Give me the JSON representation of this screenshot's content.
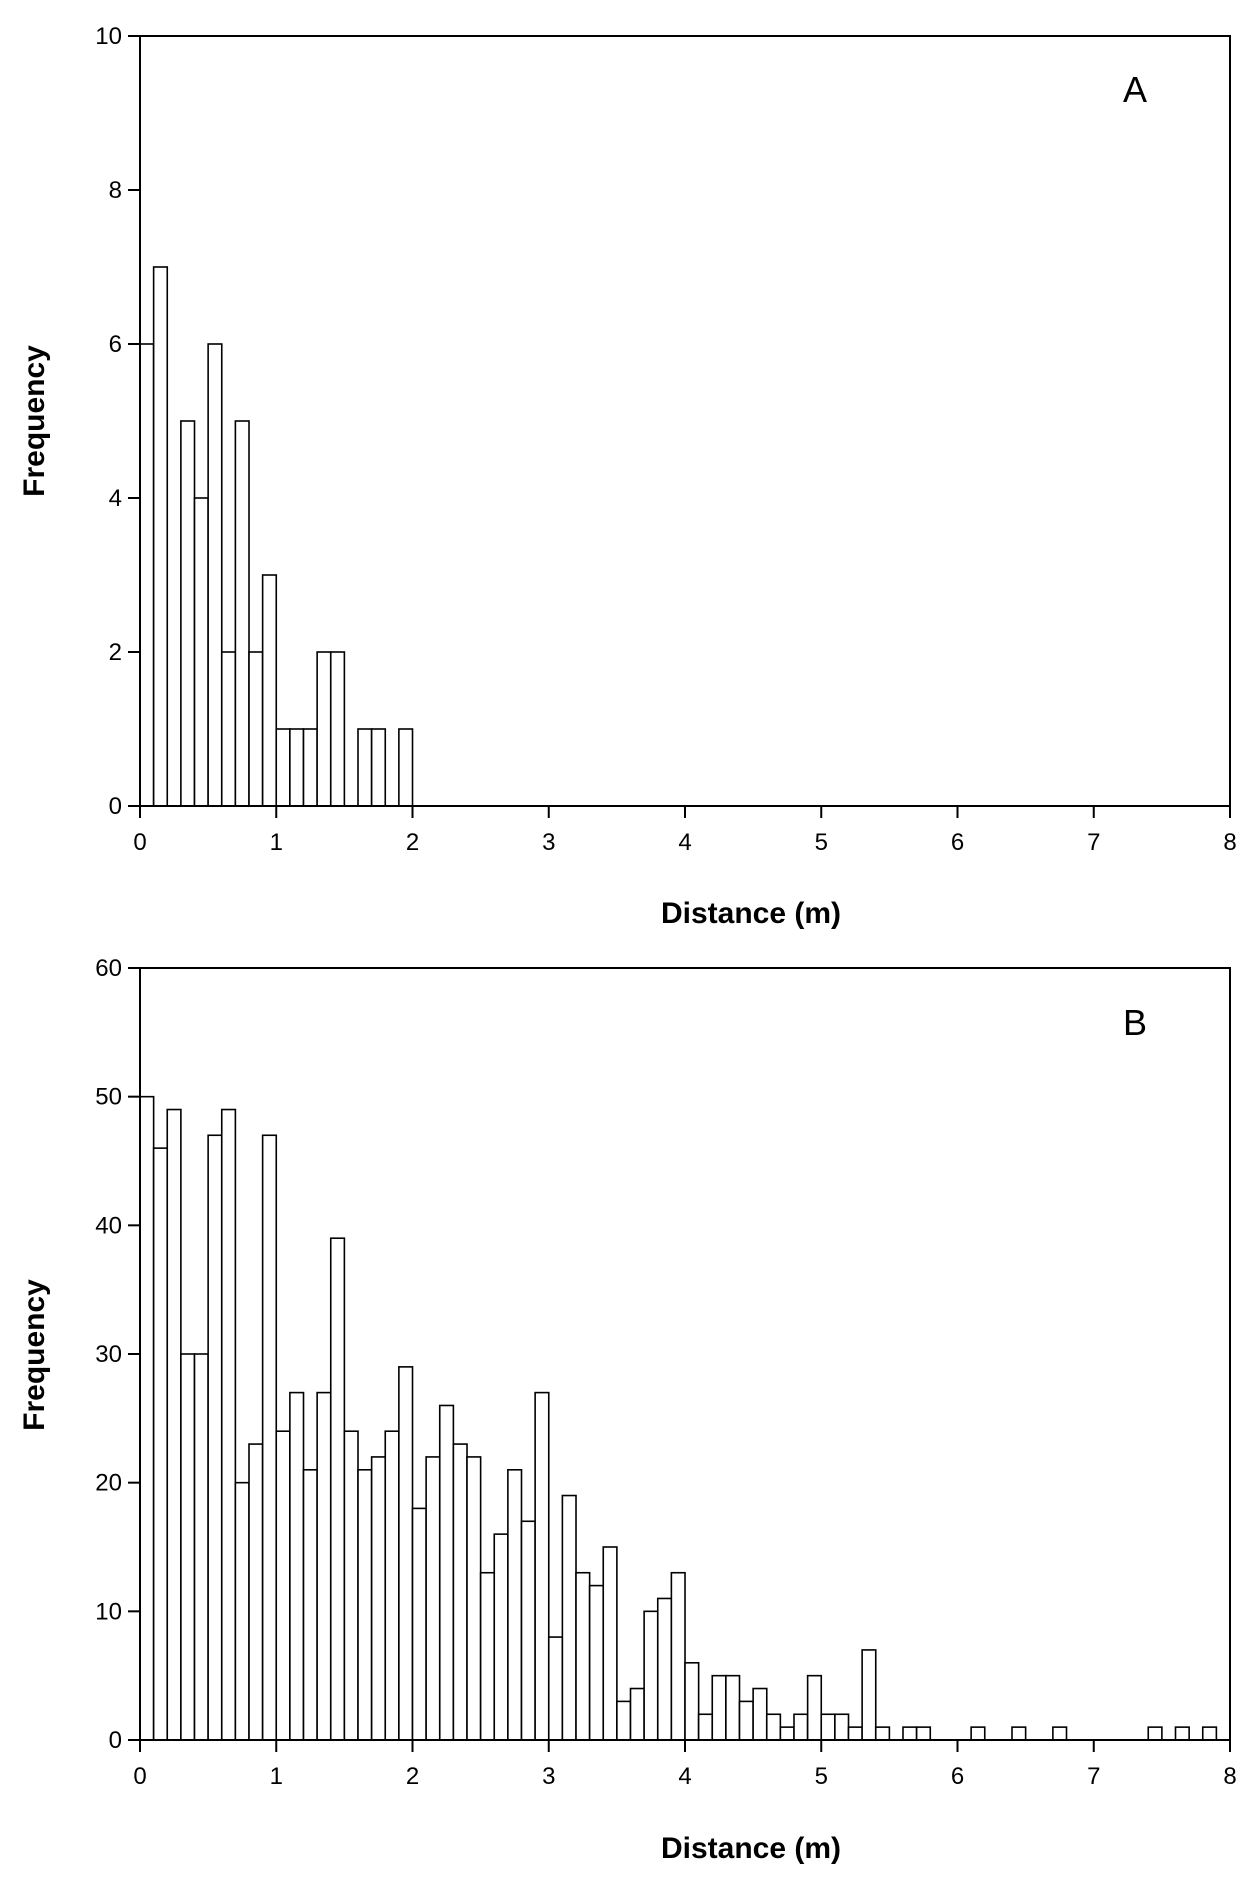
{
  "chart_data": [
    {
      "type": "bar",
      "panel_label": "A",
      "xlabel": "Distance (m)",
      "ylabel": "Frequency",
      "xlim": [
        0,
        8
      ],
      "ylim": [
        0,
        10
      ],
      "xticks": [
        "0",
        "1",
        "2",
        "3",
        "4",
        "5",
        "6",
        "7",
        "8"
      ],
      "yticks": [
        "0",
        "2",
        "4",
        "6",
        "8",
        "10"
      ],
      "bin_width": 0.1,
      "bins": [
        {
          "x": 0.1,
          "y": 6
        },
        {
          "x": 0.2,
          "y": 7
        },
        {
          "x": 0.4,
          "y": 5
        },
        {
          "x": 0.5,
          "y": 4
        },
        {
          "x": 0.6,
          "y": 6
        },
        {
          "x": 0.7,
          "y": 2
        },
        {
          "x": 0.8,
          "y": 5
        },
        {
          "x": 0.9,
          "y": 2
        },
        {
          "x": 1.0,
          "y": 3
        },
        {
          "x": 1.1,
          "y": 1
        },
        {
          "x": 1.2,
          "y": 1
        },
        {
          "x": 1.3,
          "y": 1
        },
        {
          "x": 1.4,
          "y": 2
        },
        {
          "x": 1.5,
          "y": 2
        },
        {
          "x": 1.7,
          "y": 1
        },
        {
          "x": 1.8,
          "y": 1
        },
        {
          "x": 2.0,
          "y": 1
        }
      ]
    },
    {
      "type": "bar",
      "panel_label": "B",
      "xlabel": "Distance (m)",
      "ylabel": "Frequency",
      "xlim": [
        0,
        8
      ],
      "ylim": [
        0,
        60
      ],
      "xticks": [
        "0",
        "1",
        "2",
        "3",
        "4",
        "5",
        "6",
        "7",
        "8"
      ],
      "yticks": [
        "0",
        "10",
        "20",
        "30",
        "40",
        "50",
        "60"
      ],
      "bin_width": 0.1,
      "bins": [
        {
          "x": 0.1,
          "y": 50
        },
        {
          "x": 0.2,
          "y": 46
        },
        {
          "x": 0.3,
          "y": 49
        },
        {
          "x": 0.4,
          "y": 30
        },
        {
          "x": 0.5,
          "y": 30
        },
        {
          "x": 0.6,
          "y": 47
        },
        {
          "x": 0.7,
          "y": 49
        },
        {
          "x": 0.8,
          "y": 20
        },
        {
          "x": 0.9,
          "y": 23
        },
        {
          "x": 1.0,
          "y": 47
        },
        {
          "x": 1.1,
          "y": 24
        },
        {
          "x": 1.2,
          "y": 27
        },
        {
          "x": 1.3,
          "y": 21
        },
        {
          "x": 1.4,
          "y": 27
        },
        {
          "x": 1.5,
          "y": 39
        },
        {
          "x": 1.6,
          "y": 24
        },
        {
          "x": 1.7,
          "y": 21
        },
        {
          "x": 1.8,
          "y": 22
        },
        {
          "x": 1.9,
          "y": 24
        },
        {
          "x": 2.0,
          "y": 29
        },
        {
          "x": 2.1,
          "y": 18
        },
        {
          "x": 2.2,
          "y": 22
        },
        {
          "x": 2.3,
          "y": 26
        },
        {
          "x": 2.4,
          "y": 23
        },
        {
          "x": 2.5,
          "y": 22
        },
        {
          "x": 2.6,
          "y": 13
        },
        {
          "x": 2.7,
          "y": 16
        },
        {
          "x": 2.8,
          "y": 21
        },
        {
          "x": 2.9,
          "y": 17
        },
        {
          "x": 3.0,
          "y": 27
        },
        {
          "x": 3.1,
          "y": 8
        },
        {
          "x": 3.2,
          "y": 19
        },
        {
          "x": 3.3,
          "y": 13
        },
        {
          "x": 3.4,
          "y": 12
        },
        {
          "x": 3.5,
          "y": 15
        },
        {
          "x": 3.6,
          "y": 3
        },
        {
          "x": 3.7,
          "y": 4
        },
        {
          "x": 3.8,
          "y": 10
        },
        {
          "x": 3.9,
          "y": 11
        },
        {
          "x": 4.0,
          "y": 13
        },
        {
          "x": 4.1,
          "y": 6
        },
        {
          "x": 4.2,
          "y": 2
        },
        {
          "x": 4.3,
          "y": 5
        },
        {
          "x": 4.4,
          "y": 5
        },
        {
          "x": 4.5,
          "y": 3
        },
        {
          "x": 4.6,
          "y": 4
        },
        {
          "x": 4.7,
          "y": 2
        },
        {
          "x": 4.8,
          "y": 1
        },
        {
          "x": 4.9,
          "y": 2
        },
        {
          "x": 5.0,
          "y": 5
        },
        {
          "x": 5.1,
          "y": 2
        },
        {
          "x": 5.2,
          "y": 2
        },
        {
          "x": 5.3,
          "y": 1
        },
        {
          "x": 5.4,
          "y": 7
        },
        {
          "x": 5.5,
          "y": 1
        },
        {
          "x": 5.7,
          "y": 1
        },
        {
          "x": 5.8,
          "y": 1
        },
        {
          "x": 6.2,
          "y": 1
        },
        {
          "x": 6.5,
          "y": 1
        },
        {
          "x": 6.8,
          "y": 1
        },
        {
          "x": 7.5,
          "y": 1
        },
        {
          "x": 7.7,
          "y": 1
        },
        {
          "x": 7.9,
          "y": 1
        }
      ]
    }
  ]
}
